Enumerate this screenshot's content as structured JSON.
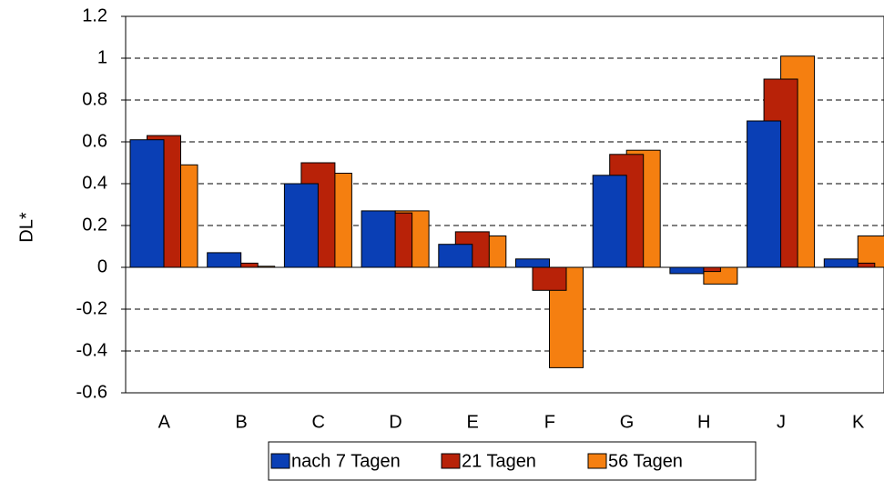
{
  "chart_data": {
    "type": "bar",
    "y_label": "DL*",
    "categories": [
      "A",
      "B",
      "C",
      "D",
      "E",
      "F",
      "G",
      "H",
      "J",
      "K"
    ],
    "series": [
      {
        "name": "nach 7 Tagen",
        "color": "#0a3fb5",
        "values": [
          0.61,
          0.07,
          0.4,
          0.27,
          0.11,
          0.04,
          0.44,
          -0.03,
          0.7,
          0.04
        ]
      },
      {
        "name": "21 Tagen",
        "color": "#b82208",
        "values": [
          0.63,
          0.02,
          0.5,
          0.26,
          0.17,
          -0.11,
          0.54,
          -0.02,
          0.9,
          0.02
        ]
      },
      {
        "name": "56 Tagen",
        "color": "#f57f10",
        "values": [
          0.49,
          0.005,
          0.45,
          0.27,
          0.15,
          -0.48,
          0.56,
          -0.08,
          1.01,
          0.15
        ]
      }
    ],
    "ylim": [
      -0.6,
      1.2
    ],
    "yticks": [
      -0.6,
      -0.4,
      -0.2,
      0,
      0.2,
      0.4,
      0.6,
      0.8,
      1,
      1.2
    ],
    "grid": true
  }
}
